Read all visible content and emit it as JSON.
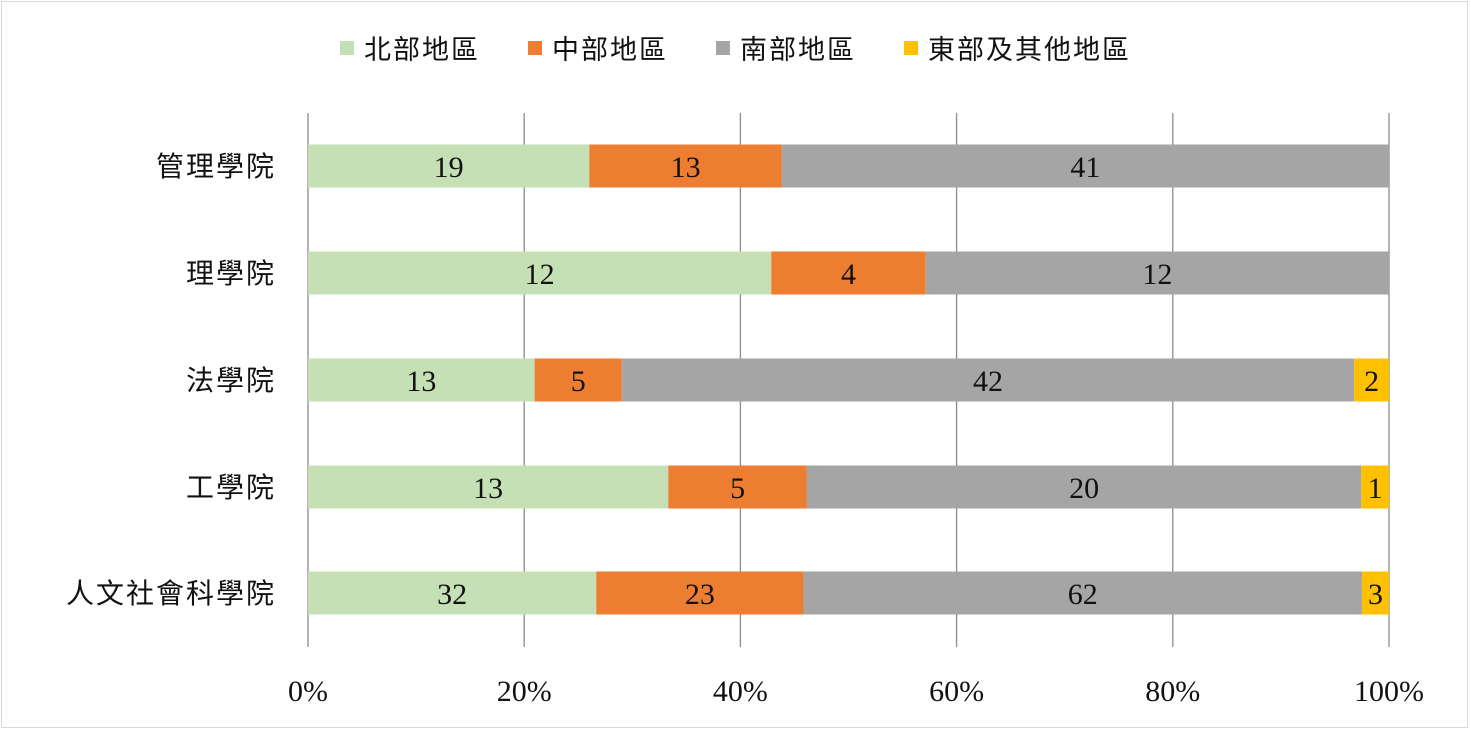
{
  "chart_data": {
    "type": "bar",
    "orientation": "horizontal",
    "stacked": "percent",
    "categories": [
      "管理學院",
      "理學院",
      "法學院",
      "工學院",
      "人文社會科學院"
    ],
    "series": [
      {
        "name": "北部地區",
        "color": "#c5e0b4",
        "values": [
          19,
          12,
          13,
          13,
          32
        ]
      },
      {
        "name": "中部地區",
        "color": "#ed7d31",
        "values": [
          13,
          4,
          5,
          5,
          23
        ]
      },
      {
        "name": "南部地區",
        "color": "#a5a5a5",
        "values": [
          41,
          12,
          42,
          20,
          62
        ]
      },
      {
        "name": "東部及其他地區",
        "color": "#ffc000",
        "values": [
          0,
          0,
          2,
          1,
          3
        ]
      }
    ],
    "xticks": [
      "0%",
      "20%",
      "40%",
      "60%",
      "80%",
      "100%"
    ],
    "xlim": [
      0,
      100
    ],
    "grid": true,
    "legend": "top-center"
  }
}
